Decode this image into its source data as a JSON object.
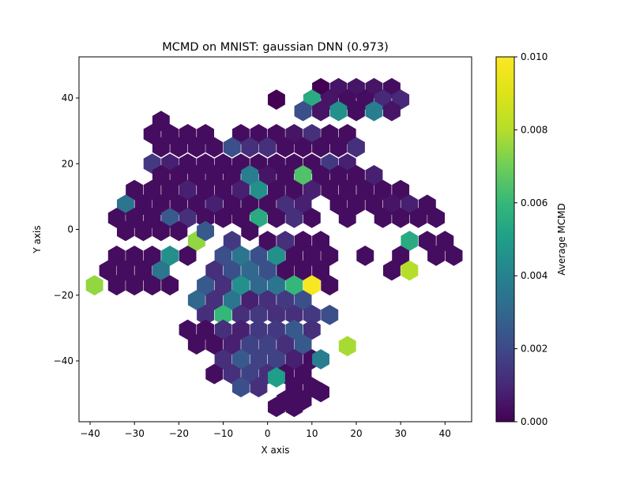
{
  "chart_data": {
    "type": "heatmap",
    "subtype": "hexbin",
    "title": "MCMD on MNIST: gaussian DNN (0.973)",
    "xlabel": "X axis",
    "ylabel": "Y axis",
    "colorbar_label": "Average MCMD",
    "xlim": [
      -42.5,
      46
    ],
    "ylim": [
      -58.5,
      52.5
    ],
    "x_ticks": [
      -40,
      -30,
      -20,
      -10,
      0,
      10,
      20,
      30,
      40
    ],
    "x_tick_labels": [
      "−40",
      "−30",
      "−20",
      "−10",
      "0",
      "10",
      "20",
      "30",
      "40"
    ],
    "y_ticks": [
      -40,
      -20,
      0,
      20,
      40
    ],
    "y_tick_labels": [
      "−40",
      "−20",
      "0",
      "20",
      "40"
    ],
    "color_range": [
      0,
      0.01
    ],
    "colorbar_ticks": [
      0.0,
      0.002,
      0.004,
      0.006,
      0.008,
      0.01
    ],
    "colorbar_tick_labels": [
      "0.000",
      "0.002",
      "0.004",
      "0.006",
      "0.008",
      "0.010"
    ],
    "colormap": "viridis",
    "grid": false,
    "hex_dx": 3.9,
    "hex_dy": 6.3,
    "cells": [
      {
        "x": 2,
        "y": 39.5,
        "v": 0.0
      },
      {
        "x": 12,
        "y": 43,
        "v": 0.0
      },
      {
        "x": 16,
        "y": 43,
        "v": 0.0005
      },
      {
        "x": 20,
        "y": 43,
        "v": 0.0005
      },
      {
        "x": 24,
        "y": 43,
        "v": 0.0005
      },
      {
        "x": 28,
        "y": 43,
        "v": 0.0003
      },
      {
        "x": 10,
        "y": 39.5,
        "v": 0.0055
      },
      {
        "x": 14,
        "y": 39.5,
        "v": 0.0005
      },
      {
        "x": 18,
        "y": 39.5,
        "v": 0.0003
      },
      {
        "x": 22,
        "y": 39.5,
        "v": 0.0003
      },
      {
        "x": 26,
        "y": 39.5,
        "v": 0.001
      },
      {
        "x": 30,
        "y": 39.5,
        "v": 0.001
      },
      {
        "x": 8,
        "y": 36,
        "v": 0.0022
      },
      {
        "x": 12,
        "y": 36,
        "v": 0.0005
      },
      {
        "x": 16,
        "y": 36,
        "v": 0.0045
      },
      {
        "x": 20,
        "y": 36,
        "v": 0.0003
      },
      {
        "x": 24,
        "y": 36,
        "v": 0.0038
      },
      {
        "x": 28,
        "y": 36,
        "v": 0.0005
      },
      {
        "x": -24,
        "y": 33,
        "v": 0.0003
      },
      {
        "x": -26,
        "y": 29,
        "v": 0.0003
      },
      {
        "x": -22,
        "y": 29,
        "v": 0.0003
      },
      {
        "x": -18,
        "y": 29,
        "v": 0.0003
      },
      {
        "x": -14,
        "y": 29,
        "v": 0.0003
      },
      {
        "x": -6,
        "y": 29,
        "v": 0.0003
      },
      {
        "x": -2,
        "y": 29,
        "v": 0.0003
      },
      {
        "x": 2,
        "y": 29,
        "v": 0.0003
      },
      {
        "x": 6,
        "y": 29,
        "v": 0.0005
      },
      {
        "x": 10,
        "y": 29,
        "v": 0.0012
      },
      {
        "x": 14,
        "y": 29,
        "v": 0.0003
      },
      {
        "x": 18,
        "y": 29,
        "v": 0.0003
      },
      {
        "x": -24,
        "y": 25,
        "v": 0.0003
      },
      {
        "x": -20,
        "y": 25,
        "v": 0.0003
      },
      {
        "x": -16,
        "y": 25,
        "v": 0.0003
      },
      {
        "x": -12,
        "y": 25,
        "v": 0.0003
      },
      {
        "x": -8,
        "y": 25,
        "v": 0.0022
      },
      {
        "x": -4,
        "y": 25,
        "v": 0.0012
      },
      {
        "x": 0,
        "y": 25,
        "v": 0.0012
      },
      {
        "x": 4,
        "y": 25,
        "v": 0.0003
      },
      {
        "x": 8,
        "y": 25,
        "v": 0.0003
      },
      {
        "x": 12,
        "y": 25,
        "v": 0.0003
      },
      {
        "x": 16,
        "y": 25,
        "v": 0.0003
      },
      {
        "x": 20,
        "y": 25,
        "v": 0.0012
      },
      {
        "x": -26,
        "y": 20,
        "v": 0.0015
      },
      {
        "x": -22,
        "y": 20,
        "v": 0.0008
      },
      {
        "x": -18,
        "y": 20,
        "v": 0.0003
      },
      {
        "x": -14,
        "y": 20,
        "v": 0.0003
      },
      {
        "x": -10,
        "y": 20,
        "v": 0.0003
      },
      {
        "x": -6,
        "y": 20,
        "v": 0.0003
      },
      {
        "x": -2,
        "y": 20,
        "v": 0.0003
      },
      {
        "x": 2,
        "y": 20,
        "v": 0.0003
      },
      {
        "x": 6,
        "y": 20,
        "v": 0.0003
      },
      {
        "x": 10,
        "y": 20,
        "v": 0.0003
      },
      {
        "x": 14,
        "y": 20,
        "v": 0.0015
      },
      {
        "x": 18,
        "y": 20,
        "v": 0.0008
      },
      {
        "x": -24,
        "y": 16.5,
        "v": 0.0003
      },
      {
        "x": -20,
        "y": 16.5,
        "v": 0.0003
      },
      {
        "x": -16,
        "y": 16.5,
        "v": 0.0003
      },
      {
        "x": -12,
        "y": 16.5,
        "v": 0.0003
      },
      {
        "x": -8,
        "y": 16.5,
        "v": 0.0003
      },
      {
        "x": -4,
        "y": 16.5,
        "v": 0.0038
      },
      {
        "x": 0,
        "y": 16.5,
        "v": 0.0005
      },
      {
        "x": 4,
        "y": 16.5,
        "v": 0.0003
      },
      {
        "x": 8,
        "y": 16.5,
        "v": 0.0065
      },
      {
        "x": 12,
        "y": 16.5,
        "v": 0.0003
      },
      {
        "x": 16,
        "y": 16.5,
        "v": 0.0003
      },
      {
        "x": 20,
        "y": 16.5,
        "v": 0.0003
      },
      {
        "x": 24,
        "y": 16.5,
        "v": 0.0008
      },
      {
        "x": -30,
        "y": 12,
        "v": 0.0003
      },
      {
        "x": -26,
        "y": 12,
        "v": 0.0003
      },
      {
        "x": -22,
        "y": 12,
        "v": 0.0003
      },
      {
        "x": -18,
        "y": 12,
        "v": 0.0008
      },
      {
        "x": -14,
        "y": 12,
        "v": 0.0003
      },
      {
        "x": -10,
        "y": 12,
        "v": 0.0003
      },
      {
        "x": -6,
        "y": 12,
        "v": 0.0008
      },
      {
        "x": -2,
        "y": 12,
        "v": 0.0045
      },
      {
        "x": 2,
        "y": 12,
        "v": 0.0003
      },
      {
        "x": 6,
        "y": 12,
        "v": 0.0003
      },
      {
        "x": 10,
        "y": 12,
        "v": 0.0008
      },
      {
        "x": 14,
        "y": 12,
        "v": 0.0003
      },
      {
        "x": 18,
        "y": 12,
        "v": 0.0003
      },
      {
        "x": 22,
        "y": 12,
        "v": 0.0003
      },
      {
        "x": 26,
        "y": 12,
        "v": 0.0003
      },
      {
        "x": 30,
        "y": 12,
        "v": 0.0003
      },
      {
        "x": -32,
        "y": 7.5,
        "v": 0.0035
      },
      {
        "x": -28,
        "y": 7.5,
        "v": 0.0003
      },
      {
        "x": -24,
        "y": 7.5,
        "v": 0.0003
      },
      {
        "x": -20,
        "y": 7.5,
        "v": 0.0003
      },
      {
        "x": -16,
        "y": 7.5,
        "v": 0.0003
      },
      {
        "x": -12,
        "y": 7.5,
        "v": 0.0008
      },
      {
        "x": -8,
        "y": 7.5,
        "v": 0.0003
      },
      {
        "x": -4,
        "y": 7.5,
        "v": 0.0003
      },
      {
        "x": 0,
        "y": 7.5,
        "v": 0.0003
      },
      {
        "x": 4,
        "y": 7.5,
        "v": 0.0012
      },
      {
        "x": 8,
        "y": 7.5,
        "v": 0.0008
      },
      {
        "x": 16,
        "y": 7.5,
        "v": 0.0003
      },
      {
        "x": 20,
        "y": 7.5,
        "v": 0.0003
      },
      {
        "x": 24,
        "y": 7.5,
        "v": 0.0003
      },
      {
        "x": 28,
        "y": 7.5,
        "v": 0.0005
      },
      {
        "x": 32,
        "y": 7.5,
        "v": 0.0008
      },
      {
        "x": 36,
        "y": 7.5,
        "v": 0.0003
      },
      {
        "x": -34,
        "y": 3.5,
        "v": 0.0003
      },
      {
        "x": -30,
        "y": 3.5,
        "v": 0.0003
      },
      {
        "x": -26,
        "y": 3.5,
        "v": 0.0003
      },
      {
        "x": -22,
        "y": 3.5,
        "v": 0.0025
      },
      {
        "x": -18,
        "y": 3.5,
        "v": 0.0012
      },
      {
        "x": -14,
        "y": 3.5,
        "v": 0.0003
      },
      {
        "x": -10,
        "y": 3.5,
        "v": 0.0003
      },
      {
        "x": -6,
        "y": 3.5,
        "v": 0.0003
      },
      {
        "x": -2,
        "y": 3.5,
        "v": 0.0055
      },
      {
        "x": 2,
        "y": 3.5,
        "v": 0.0003
      },
      {
        "x": 6,
        "y": 3.5,
        "v": 0.0012
      },
      {
        "x": 10,
        "y": 3.5,
        "v": 0.0003
      },
      {
        "x": 18,
        "y": 3.5,
        "v": 0.0003
      },
      {
        "x": 26,
        "y": 3.5,
        "v": 0.0003
      },
      {
        "x": 30,
        "y": 3.5,
        "v": 0.0003
      },
      {
        "x": 34,
        "y": 3.5,
        "v": 0.0003
      },
      {
        "x": 38,
        "y": 3.5,
        "v": 0.0003
      },
      {
        "x": -32,
        "y": -0.5,
        "v": 0.0003
      },
      {
        "x": -28,
        "y": -0.5,
        "v": 0.0003
      },
      {
        "x": -24,
        "y": -0.5,
        "v": 0.0003
      },
      {
        "x": -20,
        "y": -0.5,
        "v": 0.0003
      },
      {
        "x": -16,
        "y": -3.5,
        "v": 0.0075
      },
      {
        "x": -14,
        "y": -0.5,
        "v": 0.0025
      },
      {
        "x": -8,
        "y": -3.5,
        "v": 0.0015
      },
      {
        "x": -4,
        "y": -0.5,
        "v": 0.0003
      },
      {
        "x": 0,
        "y": -3.5,
        "v": 0.0003
      },
      {
        "x": 4,
        "y": -3.5,
        "v": 0.0012
      },
      {
        "x": 8,
        "y": -3.5,
        "v": 0.0003
      },
      {
        "x": 12,
        "y": -3.5,
        "v": 0.0003
      },
      {
        "x": 32,
        "y": -3.5,
        "v": 0.0055
      },
      {
        "x": 36,
        "y": -3.5,
        "v": 0.0003
      },
      {
        "x": 40,
        "y": -3.5,
        "v": 0.0003
      },
      {
        "x": -34,
        "y": -8,
        "v": 0.0003
      },
      {
        "x": -30,
        "y": -8,
        "v": 0.0003
      },
      {
        "x": -26,
        "y": -8,
        "v": 0.0003
      },
      {
        "x": -22,
        "y": -8,
        "v": 0.0045
      },
      {
        "x": -18,
        "y": -8,
        "v": 0.0003
      },
      {
        "x": -10,
        "y": -8,
        "v": 0.0022
      },
      {
        "x": -6,
        "y": -8,
        "v": 0.0035
      },
      {
        "x": -2,
        "y": -8,
        "v": 0.0022
      },
      {
        "x": 2,
        "y": -8,
        "v": 0.0045
      },
      {
        "x": 6,
        "y": -8,
        "v": 0.0003
      },
      {
        "x": 10,
        "y": -8,
        "v": 0.0003
      },
      {
        "x": 14,
        "y": -8,
        "v": 0.0003
      },
      {
        "x": 22,
        "y": -8,
        "v": 0.0003
      },
      {
        "x": 30,
        "y": -8,
        "v": 0.0003
      },
      {
        "x": 38,
        "y": -8,
        "v": 0.0003
      },
      {
        "x": 42,
        "y": -8,
        "v": 0.0003
      },
      {
        "x": -36,
        "y": -12.5,
        "v": 0.0003
      },
      {
        "x": -32,
        "y": -12.5,
        "v": 0.0003
      },
      {
        "x": -28,
        "y": -12.5,
        "v": 0.0003
      },
      {
        "x": -24,
        "y": -12.5,
        "v": 0.0035
      },
      {
        "x": -12,
        "y": -12.5,
        "v": 0.0012
      },
      {
        "x": -8,
        "y": -12.5,
        "v": 0.0022
      },
      {
        "x": -4,
        "y": -12.5,
        "v": 0.003
      },
      {
        "x": 0,
        "y": -12.5,
        "v": 0.0022
      },
      {
        "x": 4,
        "y": -12.5,
        "v": 0.0003
      },
      {
        "x": 8,
        "y": -12.5,
        "v": 0.0003
      },
      {
        "x": 12,
        "y": -12.5,
        "v": 0.0003
      },
      {
        "x": 28,
        "y": -12.5,
        "v": 0.0003
      },
      {
        "x": 32,
        "y": -12.5,
        "v": 0.008
      },
      {
        "x": -39,
        "y": -17,
        "v": 0.0075
      },
      {
        "x": -34,
        "y": -17,
        "v": 0.0003
      },
      {
        "x": -30,
        "y": -17,
        "v": 0.0003
      },
      {
        "x": -26,
        "y": -17,
        "v": 0.0003
      },
      {
        "x": -22,
        "y": -17,
        "v": 0.0003
      },
      {
        "x": -14,
        "y": -17,
        "v": 0.0025
      },
      {
        "x": -10,
        "y": -17,
        "v": 0.0012
      },
      {
        "x": -6,
        "y": -17,
        "v": 0.0045
      },
      {
        "x": -2,
        "y": -17,
        "v": 0.003
      },
      {
        "x": 2,
        "y": -17,
        "v": 0.0035
      },
      {
        "x": 6,
        "y": -17,
        "v": 0.006
      },
      {
        "x": 10,
        "y": -17,
        "v": 0.0098
      },
      {
        "x": 14,
        "y": -17,
        "v": 0.0003
      },
      {
        "x": -16,
        "y": -21.5,
        "v": 0.003
      },
      {
        "x": -12,
        "y": -21.5,
        "v": 0.0012
      },
      {
        "x": -8,
        "y": -21.5,
        "v": 0.0035
      },
      {
        "x": -4,
        "y": -21.5,
        "v": 0.0008
      },
      {
        "x": 0,
        "y": -21.5,
        "v": 0.0012
      },
      {
        "x": 4,
        "y": -21.5,
        "v": 0.0015
      },
      {
        "x": 8,
        "y": -21.5,
        "v": 0.0022
      },
      {
        "x": -14,
        "y": -26,
        "v": 0.0012
      },
      {
        "x": -10,
        "y": -26,
        "v": 0.006
      },
      {
        "x": -6,
        "y": -26,
        "v": 0.0012
      },
      {
        "x": -2,
        "y": -26,
        "v": 0.0015
      },
      {
        "x": 2,
        "y": -26,
        "v": 0.0012
      },
      {
        "x": 6,
        "y": -26,
        "v": 0.0012
      },
      {
        "x": 10,
        "y": -26,
        "v": 0.0015
      },
      {
        "x": 14,
        "y": -26,
        "v": 0.0022
      },
      {
        "x": -18,
        "y": -30.5,
        "v": 0.0003
      },
      {
        "x": -14,
        "y": -30.5,
        "v": 0.0003
      },
      {
        "x": -10,
        "y": -30.5,
        "v": 0.0012
      },
      {
        "x": -6,
        "y": -30.5,
        "v": 0.0008
      },
      {
        "x": -2,
        "y": -30.5,
        "v": 0.0015
      },
      {
        "x": 2,
        "y": -30.5,
        "v": 0.0015
      },
      {
        "x": 6,
        "y": -30.5,
        "v": 0.0025
      },
      {
        "x": 10,
        "y": -30.5,
        "v": 0.0012
      },
      {
        "x": -16,
        "y": -35,
        "v": 0.0003
      },
      {
        "x": -12,
        "y": -35,
        "v": 0.0003
      },
      {
        "x": -8,
        "y": -35,
        "v": 0.0008
      },
      {
        "x": -4,
        "y": -35,
        "v": 0.0018
      },
      {
        "x": 0,
        "y": -35,
        "v": 0.0018
      },
      {
        "x": 4,
        "y": -35,
        "v": 0.0012
      },
      {
        "x": 8,
        "y": -35,
        "v": 0.0025
      },
      {
        "x": 18,
        "y": -35.5,
        "v": 0.0078
      },
      {
        "x": -10,
        "y": -39.5,
        "v": 0.0012
      },
      {
        "x": -6,
        "y": -39.5,
        "v": 0.0025
      },
      {
        "x": -2,
        "y": -39.5,
        "v": 0.0018
      },
      {
        "x": 2,
        "y": -39.5,
        "v": 0.0018
      },
      {
        "x": 6,
        "y": -39.5,
        "v": 0.0008
      },
      {
        "x": 10,
        "y": -39.5,
        "v": 0.0003
      },
      {
        "x": 12,
        "y": -39.5,
        "v": 0.0038
      },
      {
        "x": -12,
        "y": -44,
        "v": 0.0003
      },
      {
        "x": -8,
        "y": -44,
        "v": 0.0012
      },
      {
        "x": -4,
        "y": -44,
        "v": 0.0018
      },
      {
        "x": 0,
        "y": -44,
        "v": 0.0012
      },
      {
        "x": 4,
        "y": -44,
        "v": 0.0003
      },
      {
        "x": 8,
        "y": -44,
        "v": 0.0003
      },
      {
        "x": -6,
        "y": -48,
        "v": 0.0022
      },
      {
        "x": -2,
        "y": -48,
        "v": 0.0012
      },
      {
        "x": 2,
        "y": -45,
        "v": 0.005
      },
      {
        "x": 6,
        "y": -48,
        "v": 0.0003
      },
      {
        "x": 10,
        "y": -48,
        "v": 0.0003
      },
      {
        "x": 4,
        "y": -52,
        "v": 0.0003
      },
      {
        "x": 8,
        "y": -52,
        "v": 0.0003
      },
      {
        "x": 12,
        "y": -49.5,
        "v": 0.0003
      },
      {
        "x": 2,
        "y": -54,
        "v": 0.0003
      },
      {
        "x": 6,
        "y": -54,
        "v": 0.0003
      }
    ]
  }
}
